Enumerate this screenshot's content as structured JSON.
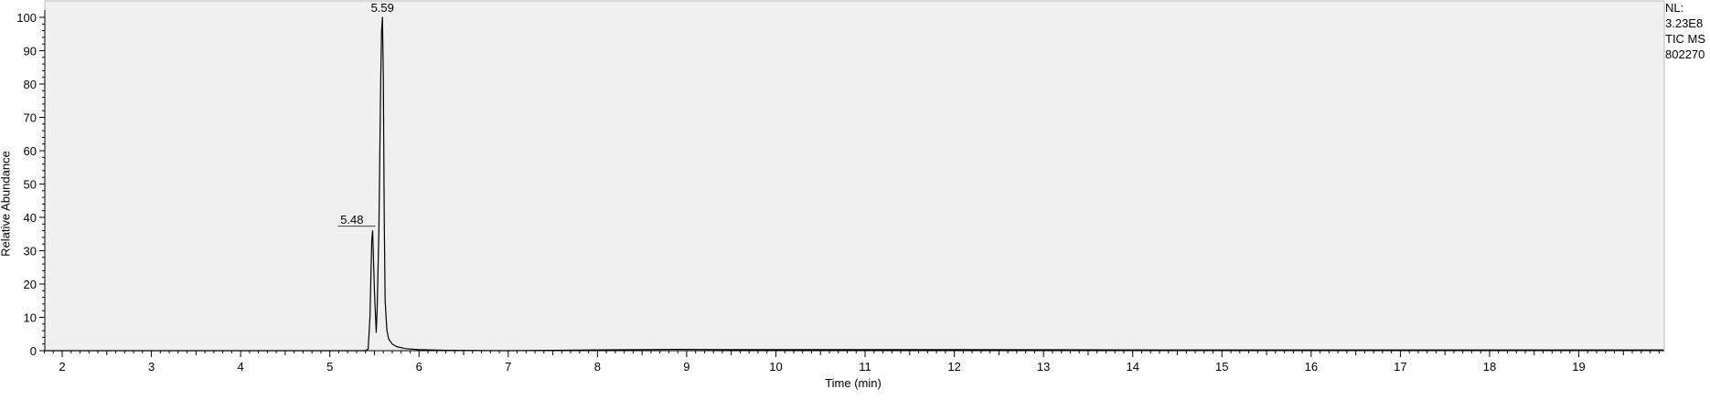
{
  "chart_data": {
    "type": "line",
    "title": "",
    "xlabel": "Time (min)",
    "ylabel": "Relative Abundance",
    "xlim": [
      1.8,
      19.95
    ],
    "ylim": [
      0,
      100
    ],
    "xticks": [
      "2",
      "3",
      "4",
      "5",
      "6",
      "7",
      "8",
      "9",
      "10",
      "11",
      "12",
      "13",
      "14",
      "15",
      "16",
      "17",
      "18",
      "19"
    ],
    "yticks": [
      "0",
      "10",
      "20",
      "30",
      "40",
      "50",
      "60",
      "70",
      "80",
      "90",
      "100"
    ],
    "grid": false,
    "legend": "none",
    "side_info": [
      "NL:",
      "3.23E8",
      "TIC  MS",
      "802270"
    ],
    "peak_labels": [
      {
        "x": 5.59,
        "y": 100,
        "text": "5.59"
      },
      {
        "x": 5.48,
        "y": 36.5,
        "text": "5.48"
      }
    ],
    "series": [
      {
        "x": [
          1.8,
          5.0,
          5.4,
          5.43,
          5.45,
          5.47,
          5.48,
          5.5,
          5.52,
          5.53,
          5.55,
          5.57,
          5.58,
          5.59,
          5.6,
          5.61,
          5.62,
          5.64,
          5.66,
          5.7,
          5.75,
          5.85,
          6.0,
          6.3,
          7.0,
          7.9,
          8.9,
          9.5,
          12.0,
          15.0,
          19.95
        ],
        "y": [
          0,
          0,
          0,
          0.5,
          10,
          33,
          36,
          18,
          5.5,
          12,
          36,
          80,
          96,
          100,
          82,
          40,
          15,
          6,
          3.5,
          2,
          1.2,
          0.6,
          0.3,
          0.1,
          0,
          0.2,
          0.4,
          0.3,
          0.3,
          0.2,
          0.2
        ]
      }
    ],
    "colors": {
      "plot_bg": "#f0f0f0",
      "line": "#000000",
      "axis": "#000000"
    }
  }
}
